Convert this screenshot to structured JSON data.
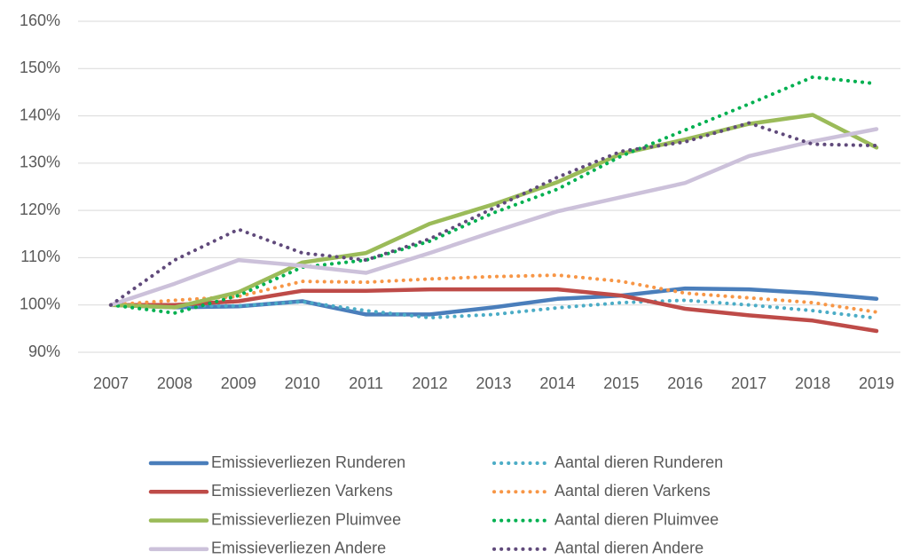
{
  "chart_data": {
    "type": "line",
    "categories": [
      "2007",
      "2008",
      "2009",
      "2010",
      "2011",
      "2012",
      "2013",
      "2014",
      "2015",
      "2016",
      "2017",
      "2018",
      "2019"
    ],
    "ylim": [
      90,
      160
    ],
    "yticks": [
      {
        "value": 90,
        "label": "90%"
      },
      {
        "value": 100,
        "label": "100%"
      },
      {
        "value": 110,
        "label": "110%"
      },
      {
        "value": 120,
        "label": "120%"
      },
      {
        "value": 130,
        "label": "130%"
      },
      {
        "value": 140,
        "label": "140%"
      },
      {
        "value": 150,
        "label": "150%"
      },
      {
        "value": 160,
        "label": "160%"
      }
    ],
    "grid": true,
    "legend": "bottom",
    "series": [
      {
        "name": "Emissieverliezen Runderen",
        "color": "#4a7ebb",
        "line_style": "solid",
        "values": [
          100,
          99.5,
          99.7,
          100.8,
          98,
          98,
          99.5,
          101.3,
          102,
          103.5,
          103.3,
          102.5,
          101.3
        ]
      },
      {
        "name": "Aantal dieren Runderen",
        "color": "#4bacc6",
        "line_style": "dotted",
        "values": [
          100,
          99.8,
          99.8,
          100.7,
          98.8,
          97.3,
          98,
          99.4,
          100.5,
          101,
          100,
          98.8,
          97.2
        ]
      },
      {
        "name": "Emissieverliezen Varkens",
        "color": "#be4b48",
        "line_style": "solid",
        "values": [
          100,
          100,
          100.8,
          103,
          103,
          103.3,
          103.3,
          103.3,
          102,
          99.2,
          97.8,
          96.7,
          94.5
        ]
      },
      {
        "name": "Aantal dieren Varkens",
        "color": "#f79646",
        "line_style": "dotted",
        "values": [
          100,
          101,
          101.8,
          105,
          104.8,
          105.5,
          106,
          106.3,
          105,
          102.5,
          101.5,
          100.5,
          98.5
        ]
      },
      {
        "name": "Emissieverliezen Pluimvee",
        "color": "#9bbb59",
        "line_style": "solid",
        "values": [
          100,
          99.5,
          102.7,
          109,
          111,
          117.2,
          121.3,
          126,
          132,
          135,
          138.3,
          140.2,
          133.3
        ]
      },
      {
        "name": "Aantal dieren Pluimvee",
        "color": "#00b050",
        "line_style": "dotted",
        "values": [
          100,
          98.3,
          102,
          108,
          109.5,
          113.5,
          119.5,
          124.5,
          131.5,
          137,
          142.5,
          148.2,
          146.8
        ]
      },
      {
        "name": "Emissieverliezen Andere",
        "color": "#ccc1da",
        "line_style": "solid",
        "values": [
          100,
          104.5,
          109.5,
          108.3,
          106.8,
          111,
          115.5,
          119.8,
          122.8,
          125.8,
          131.5,
          134.6,
          137.2
        ]
      },
      {
        "name": "Aantal dieren Andere",
        "color": "#604a7b",
        "line_style": "dotted",
        "values": [
          100,
          109.5,
          116,
          111,
          109.5,
          114,
          120.5,
          127,
          132.5,
          134.5,
          138.5,
          134,
          133.7
        ]
      }
    ]
  }
}
